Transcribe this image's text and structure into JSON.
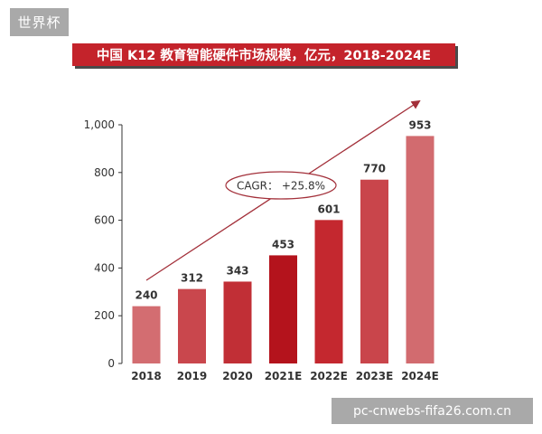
{
  "corner_tag": "世界杯",
  "watermark": "pc-cnwebs-fifa26.com.cn",
  "chart_data": {
    "type": "bar",
    "title": "中国 K12 教育智能硬件市场规模，亿元，2018-2024E",
    "categories": [
      "2018",
      "2019",
      "2020",
      "2021E",
      "2022E",
      "2023E",
      "2024E"
    ],
    "values": [
      240,
      312,
      343,
      453,
      601,
      770,
      953
    ],
    "value_labels": [
      "240",
      "312",
      "343",
      "453",
      "601",
      "770",
      "953"
    ],
    "ylim": [
      0,
      1000
    ],
    "yticks": [
      0,
      200,
      400,
      600,
      800,
      1000
    ],
    "ytick_labels": [
      "0",
      "200",
      "400",
      "600",
      "800",
      "1,000"
    ],
    "grid": false,
    "annotation": "CAGR： +25.8%",
    "colors": {
      "bar_2018": "#d36d71",
      "bar_2019": "#c9474d",
      "bar_2020": "#c12f36",
      "bar_2021E": "#b4131c",
      "bar_2022E": "#c4282f",
      "bar_2023E": "#c9454b",
      "bar_2024E": "#d26b6f",
      "title_background": "#c4232b",
      "arrow": "#a3303a",
      "axis": "#333333"
    }
  }
}
